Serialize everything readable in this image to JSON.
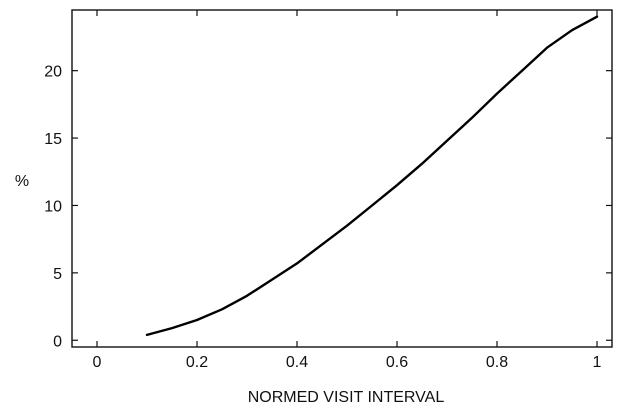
{
  "chart_data": {
    "type": "line",
    "title": "",
    "xlabel": "NORMED VISIT INTERVAL",
    "ylabel": "%",
    "xlim": [
      -0.05,
      1.03
    ],
    "ylim": [
      -0.5,
      24.5
    ],
    "grid": false,
    "legend": "none",
    "xticks": [
      0,
      0.2,
      0.4,
      0.6,
      0.8,
      1
    ],
    "xtick_labels": [
      "0",
      "0.2",
      "0.4",
      "0.6",
      "0.8",
      "1"
    ],
    "yticks": [
      0,
      5,
      10,
      15,
      20
    ],
    "ytick_labels": [
      "0",
      "5",
      "10",
      "15",
      "20"
    ],
    "series": [
      {
        "x": [
          0.1,
          0.15,
          0.2,
          0.25,
          0.3,
          0.35,
          0.4,
          0.45,
          0.5,
          0.55,
          0.6,
          0.65,
          0.7,
          0.75,
          0.8,
          0.85,
          0.9,
          0.95,
          1.0
        ],
        "values": [
          0.4,
          0.9,
          1.5,
          2.3,
          3.3,
          4.5,
          5.7,
          7.1,
          8.5,
          10.0,
          11.5,
          13.1,
          14.8,
          16.5,
          18.3,
          20.0,
          21.7,
          23.0,
          24.0
        ],
        "color": "#000000"
      }
    ]
  }
}
